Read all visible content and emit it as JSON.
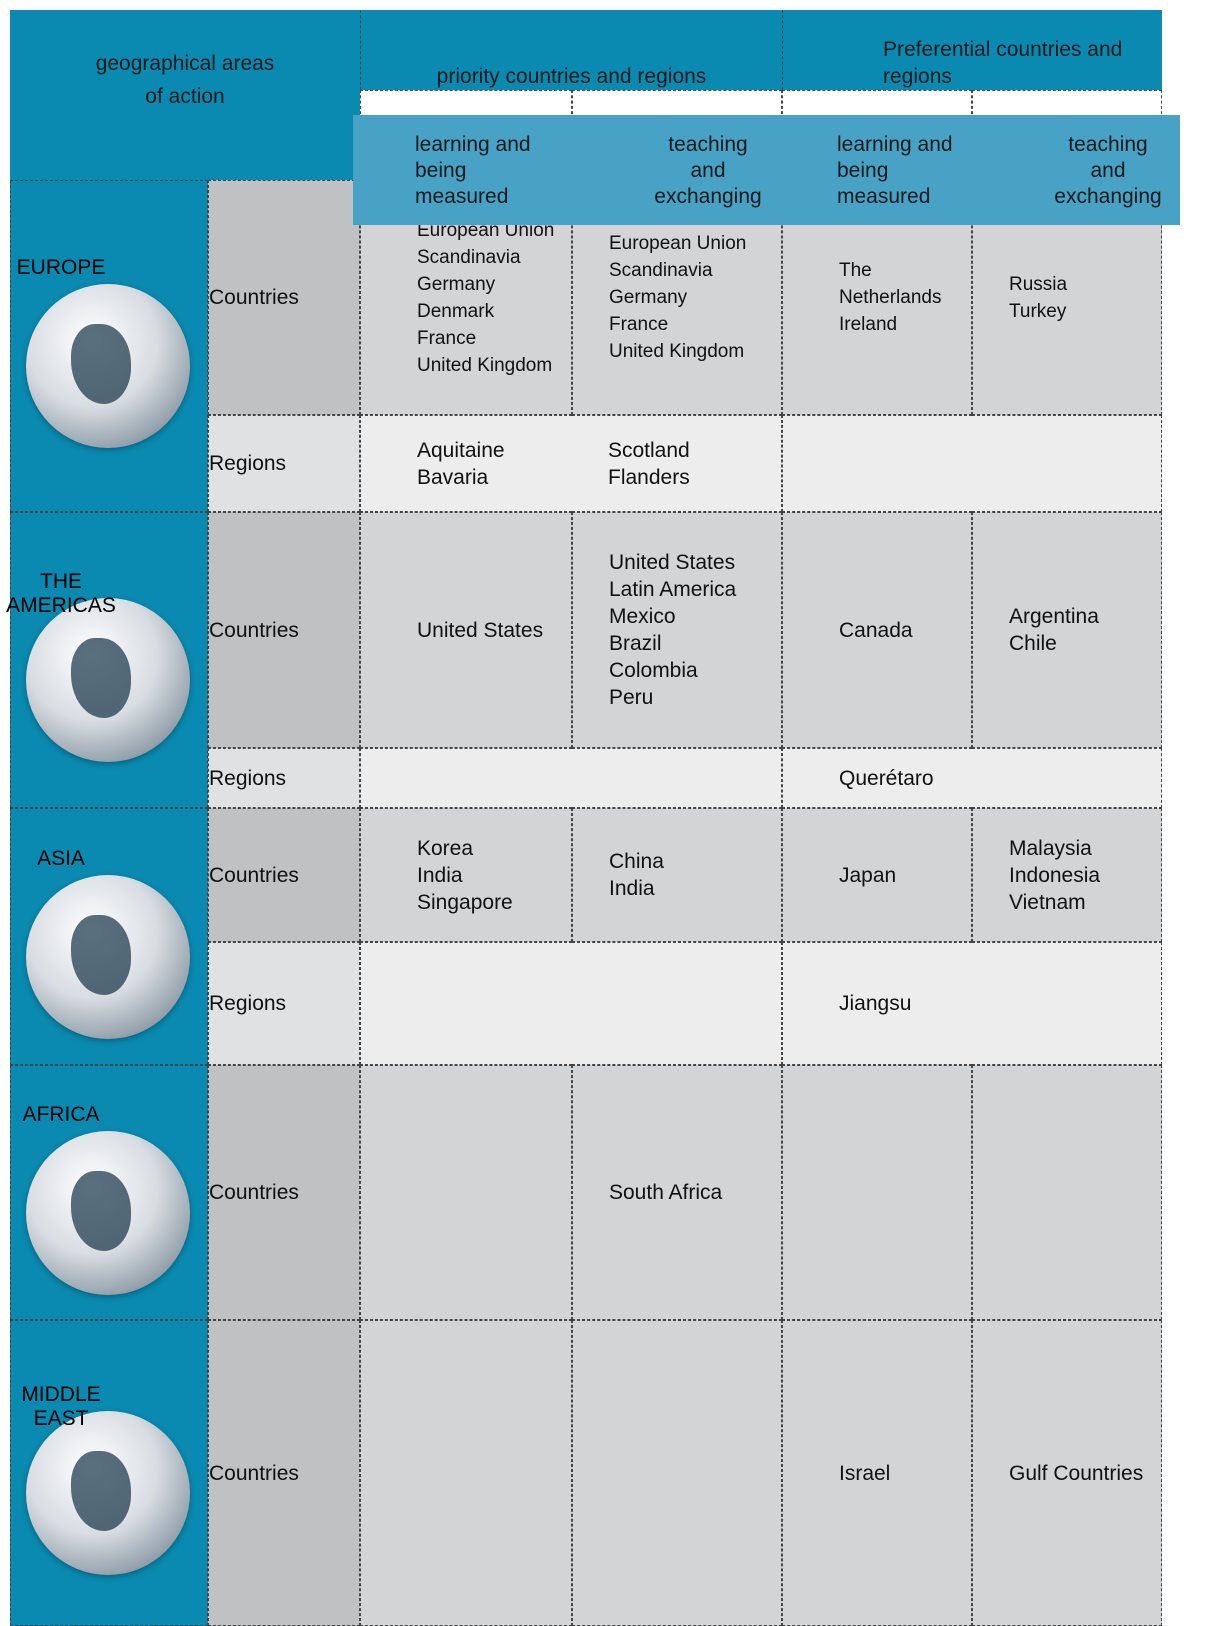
{
  "header": {
    "areas": [
      "geographical areas",
      "of action"
    ],
    "groups": [
      "priority countries and regions",
      "Preferential countries and regions"
    ],
    "subheaders": [
      "learning and being measured",
      "teaching and exchanging",
      "learning and being measured",
      "teaching and exchanging"
    ]
  },
  "regions": [
    {
      "name": "EUROPE",
      "rows": [
        {
          "label": "Countries",
          "cells": [
            [
              "European Union",
              "Scandinavia",
              "Germany",
              "Denmark",
              "France",
              "United Kingdom"
            ],
            [
              "European Union",
              "Scandinavia",
              "Germany",
              "France",
              "United Kingdom"
            ],
            [
              "The Netherlands",
              "Ireland"
            ],
            [
              "Russia",
              "Turkey"
            ]
          ]
        },
        {
          "label": "Regions",
          "cells": [
            [
              "Aquitaine",
              "Bavaria"
            ],
            [
              "Scotland",
              "Flanders"
            ],
            [],
            []
          ]
        }
      ]
    },
    {
      "name": "THE AMERICAS",
      "rows": [
        {
          "label": "Countries",
          "cells": [
            [
              "United States"
            ],
            [
              "United States",
              "Latin America",
              "Mexico",
              "Brazil",
              "Colombia",
              "Peru"
            ],
            [
              "Canada"
            ],
            [
              "Argentina",
              "Chile"
            ]
          ]
        },
        {
          "label": "Regions",
          "cells": [
            [],
            [],
            [
              "Querétaro"
            ],
            []
          ]
        }
      ]
    },
    {
      "name": "ASIA",
      "rows": [
        {
          "label": "Countries",
          "cells": [
            [
              "Korea",
              "India",
              "Singapore"
            ],
            [
              "China",
              "India"
            ],
            [
              "Japan"
            ],
            [
              "Malaysia",
              "Indonesia",
              "Vietnam"
            ]
          ]
        },
        {
          "label": "Regions",
          "cells": [
            [],
            [],
            [
              "Jiangsu"
            ],
            []
          ]
        }
      ]
    },
    {
      "name": "AFRICA",
      "rows": [
        {
          "label": "Countries",
          "cells": [
            [],
            [
              "South Africa"
            ],
            [],
            []
          ]
        }
      ]
    },
    {
      "name": "MIDDLE EAST",
      "rows": [
        {
          "label": "Countries",
          "cells": [
            [],
            [],
            [
              "Israel"
            ],
            [
              "Gulf Countries"
            ]
          ]
        }
      ]
    }
  ]
}
